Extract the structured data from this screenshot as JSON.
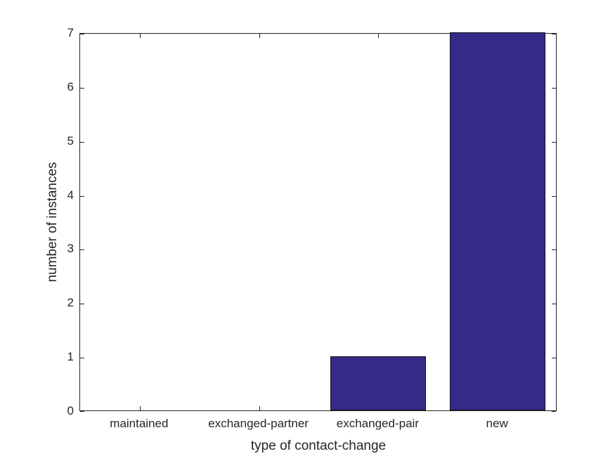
{
  "chart_data": {
    "type": "bar",
    "categories": [
      "maintained",
      "exchanged-partner",
      "exchanged-pair",
      "new"
    ],
    "values": [
      0,
      0,
      1,
      7
    ],
    "title": "",
    "xlabel": "type of contact-change",
    "ylabel": "number of instances",
    "ylim": [
      0,
      7
    ],
    "yticks": [
      0,
      1,
      2,
      3,
      4,
      5,
      6,
      7
    ],
    "bar_width_fraction": 0.8,
    "grid": false,
    "legend": "none",
    "colors": {
      "bar_fill": "#352a87",
      "bar_edge": "#111111",
      "axis_line": "#222222",
      "text": "#262626",
      "background": "#ffffff"
    }
  }
}
